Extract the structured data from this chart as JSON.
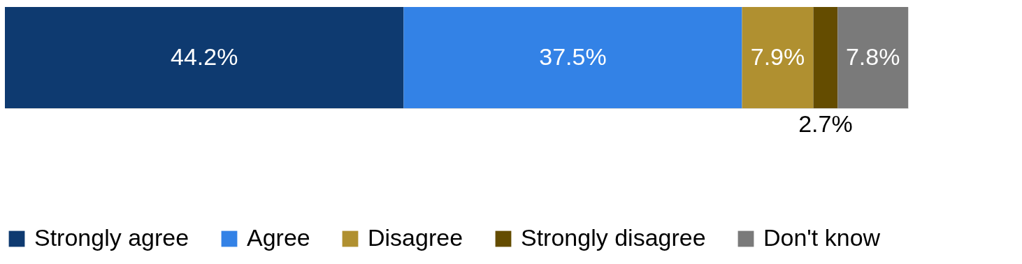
{
  "chart_data": {
    "type": "bar",
    "orientation": "horizontal",
    "stacked": true,
    "categories": [
      null
    ],
    "legend": "bottom",
    "series": [
      {
        "name": "Strongly agree",
        "color": "#0e3a70",
        "values": [
          44.2
        ],
        "value_labels": [
          "44.2%"
        ]
      },
      {
        "name": "Agree",
        "color": "#3382e6",
        "values": [
          37.5
        ],
        "value_labels": [
          "37.5%"
        ]
      },
      {
        "name": "Disagree",
        "color": "#b09030",
        "values": [
          7.9
        ],
        "value_labels": [
          "7.9%"
        ]
      },
      {
        "name": "Strongly disagree",
        "color": "#644c00",
        "values": [
          2.7
        ],
        "value_labels": [
          "2.7%"
        ]
      },
      {
        "name": "Don't know",
        "color": "#7a7a7a",
        "values": [
          7.8
        ],
        "value_labels": [
          "7.8%"
        ]
      }
    ]
  }
}
